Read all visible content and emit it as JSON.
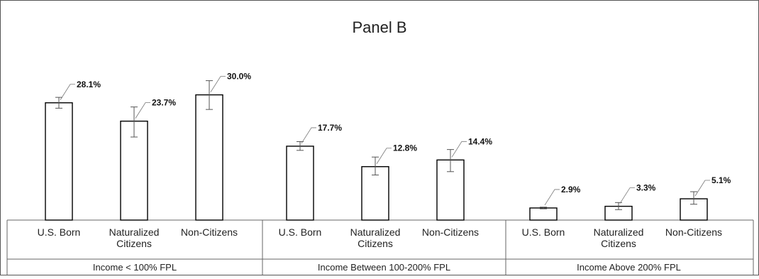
{
  "chart_data": {
    "type": "bar",
    "title": "Panel B",
    "xlabel": "",
    "ylabel": "",
    "ylim": [
      0,
      36
    ],
    "grid": false,
    "legend": "none",
    "colors": {
      "bar_fill": "#ffffff",
      "bar_stroke": "#000000",
      "error_bar": "#555555"
    },
    "groups": [
      {
        "label": "Income < 100% FPL",
        "categories": [
          {
            "name": [
              "U.S. Born"
            ],
            "value": 28.1,
            "value_label": "28.1%",
            "error_low": 26.8,
            "error_high": 29.4
          },
          {
            "name": [
              "Naturalized",
              "Citizens"
            ],
            "value": 23.7,
            "value_label": "23.7%",
            "error_low": 19.9,
            "error_high": 27.1
          },
          {
            "name": [
              "Non-Citizens"
            ],
            "value": 30.0,
            "value_label": "30.0%",
            "error_low": 26.5,
            "error_high": 33.4
          }
        ]
      },
      {
        "label": "Income Between 100-200% FPL",
        "categories": [
          {
            "name": [
              "U.S. Born"
            ],
            "value": 17.7,
            "value_label": "17.7%",
            "error_low": 16.7,
            "error_high": 18.8
          },
          {
            "name": [
              "Naturalized",
              "Citizens"
            ],
            "value": 12.8,
            "value_label": "12.8%",
            "error_low": 10.8,
            "error_high": 15.1
          },
          {
            "name": [
              "Non-Citizens"
            ],
            "value": 14.4,
            "value_label": "14.4%",
            "error_low": 11.6,
            "error_high": 16.9
          }
        ]
      },
      {
        "label": "Income Above 200% FPL",
        "categories": [
          {
            "name": [
              "U.S. Born"
            ],
            "value": 2.9,
            "value_label": "2.9%",
            "error_low": 2.7,
            "error_high": 3.1
          },
          {
            "name": [
              "Naturalized",
              "Citizens"
            ],
            "value": 3.3,
            "value_label": "3.3%",
            "error_low": 2.5,
            "error_high": 4.2
          },
          {
            "name": [
              "Non-Citizens"
            ],
            "value": 5.1,
            "value_label": "5.1%",
            "error_low": 3.8,
            "error_high": 6.8
          }
        ]
      }
    ]
  }
}
